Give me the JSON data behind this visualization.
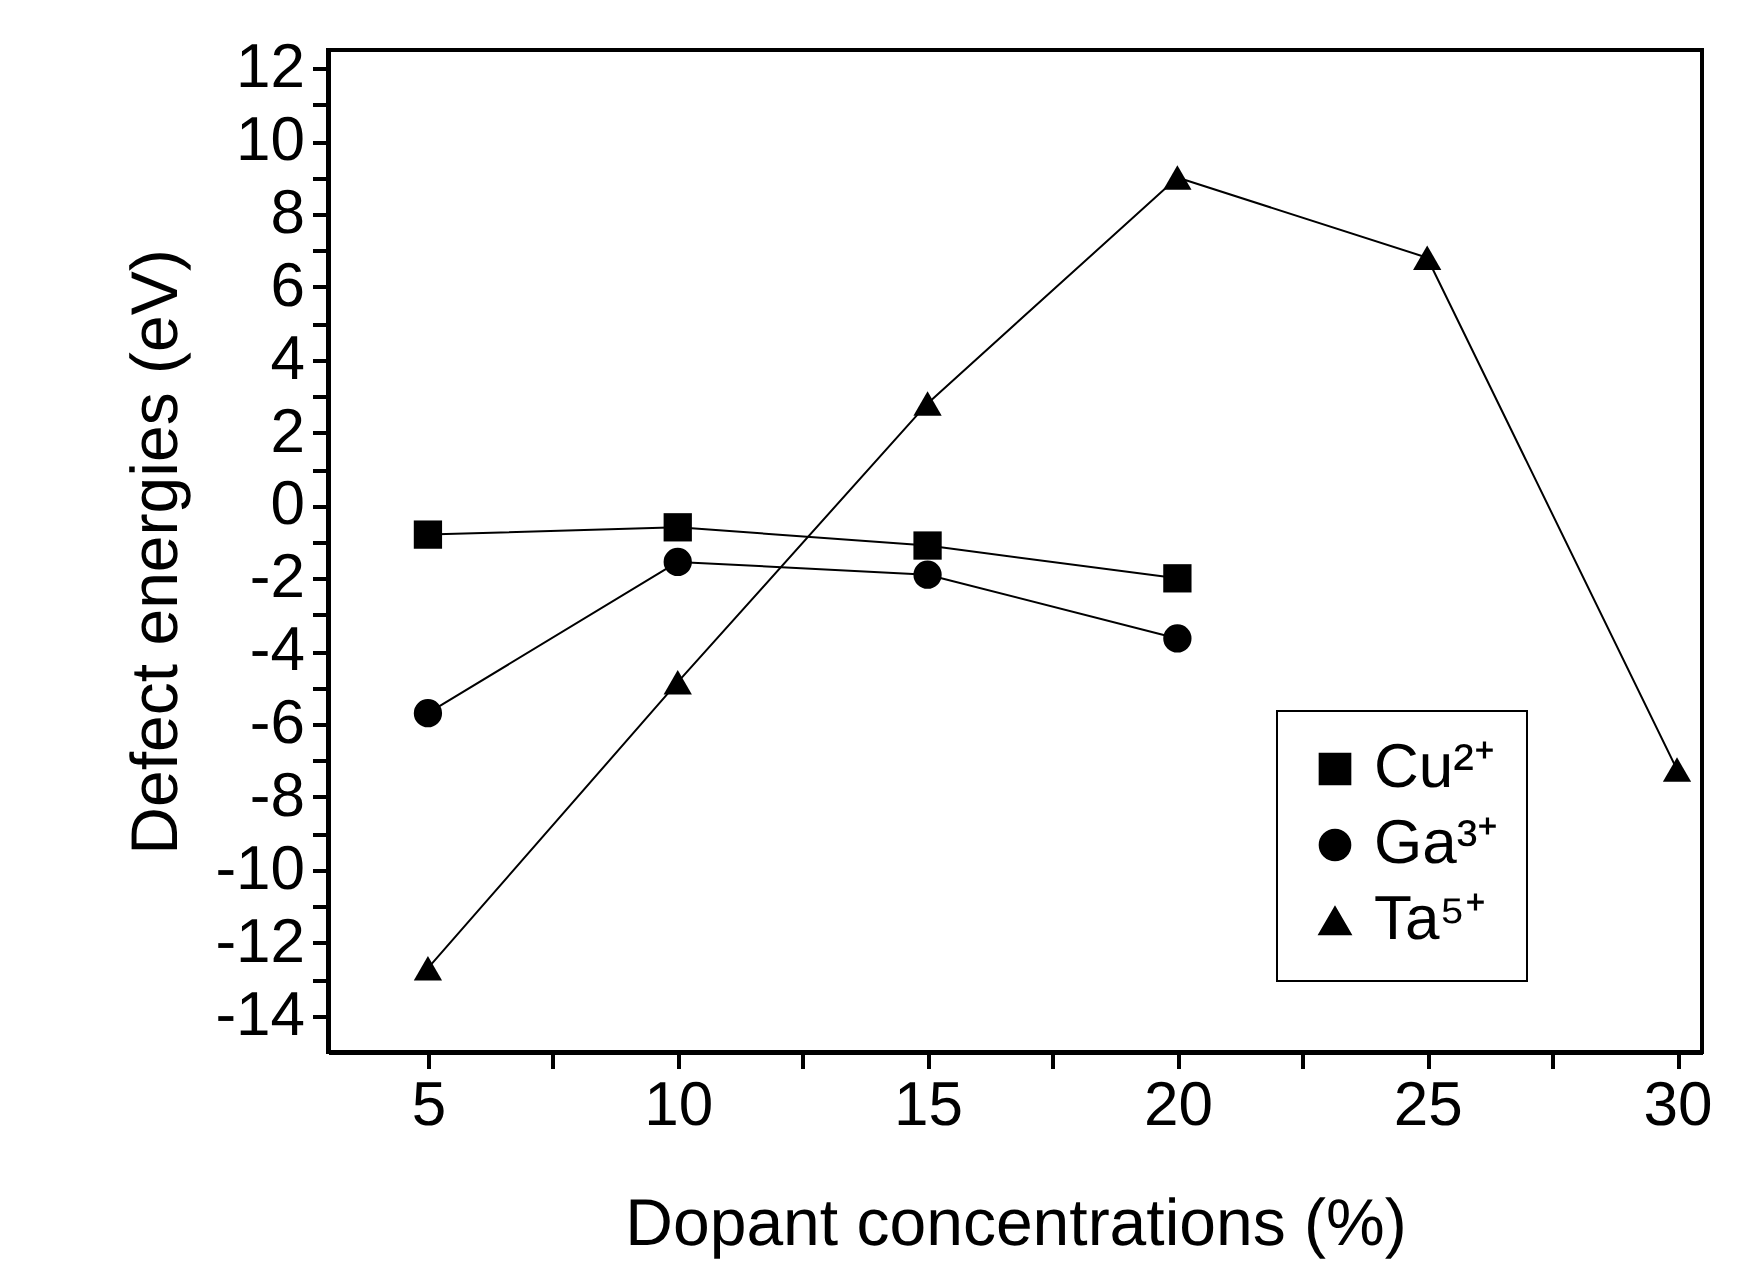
{
  "chart_data": {
    "type": "line",
    "xlabel": "Dopant concentrations (%)",
    "ylabel": "Defect energies (eV)",
    "xlim": [
      3,
      30.5
    ],
    "ylim": [
      -15,
      12.5
    ],
    "xticks": [
      5,
      {
        "value": 7.5,
        "label": null
      },
      10,
      {
        "value": 12.5,
        "label": null
      },
      15,
      {
        "value": 17.5,
        "label": null
      },
      20,
      {
        "value": 22.5,
        "label": null
      },
      25,
      {
        "value": 27.5,
        "label": null
      },
      30
    ],
    "yticks": [
      -14,
      {
        "value": -13,
        "label": null
      },
      -12,
      {
        "value": -11,
        "label": null
      },
      -10,
      {
        "value": -9,
        "label": null
      },
      -8,
      {
        "value": -7,
        "label": null
      },
      -6,
      {
        "value": -5,
        "label": null
      },
      -4,
      {
        "value": -3,
        "label": null
      },
      -2,
      {
        "value": -1,
        "label": null
      },
      0,
      {
        "value": 1,
        "label": null
      },
      2,
      {
        "value": 3,
        "label": null
      },
      4,
      {
        "value": 5,
        "label": null
      },
      6,
      {
        "value": 7,
        "label": null
      },
      8,
      {
        "value": 9,
        "label": null
      },
      10,
      {
        "value": 11,
        "label": null
      },
      12
    ],
    "grid": false,
    "legend": "bottom right",
    "line_style": "solid",
    "series": [
      {
        "name": "Cu²⁺",
        "color": "#000000",
        "marker": "square",
        "x": [
          5,
          10,
          15,
          20
        ],
        "values": [
          -0.8,
          -0.6,
          -1.1,
          -2.0
        ]
      },
      {
        "name": "Ga³⁺",
        "color": "#000000",
        "marker": "circle",
        "x": [
          5,
          10,
          15,
          20
        ],
        "values": [
          -5.7,
          -1.55,
          -1.9,
          -3.65
        ]
      },
      {
        "name": "Ta⁵⁺",
        "color": "#000000",
        "marker": "triangle",
        "x": [
          5,
          10,
          15,
          20,
          25,
          30
        ],
        "values": [
          -12.7,
          -4.85,
          2.8,
          9.0,
          6.8,
          -7.25
        ]
      }
    ]
  }
}
